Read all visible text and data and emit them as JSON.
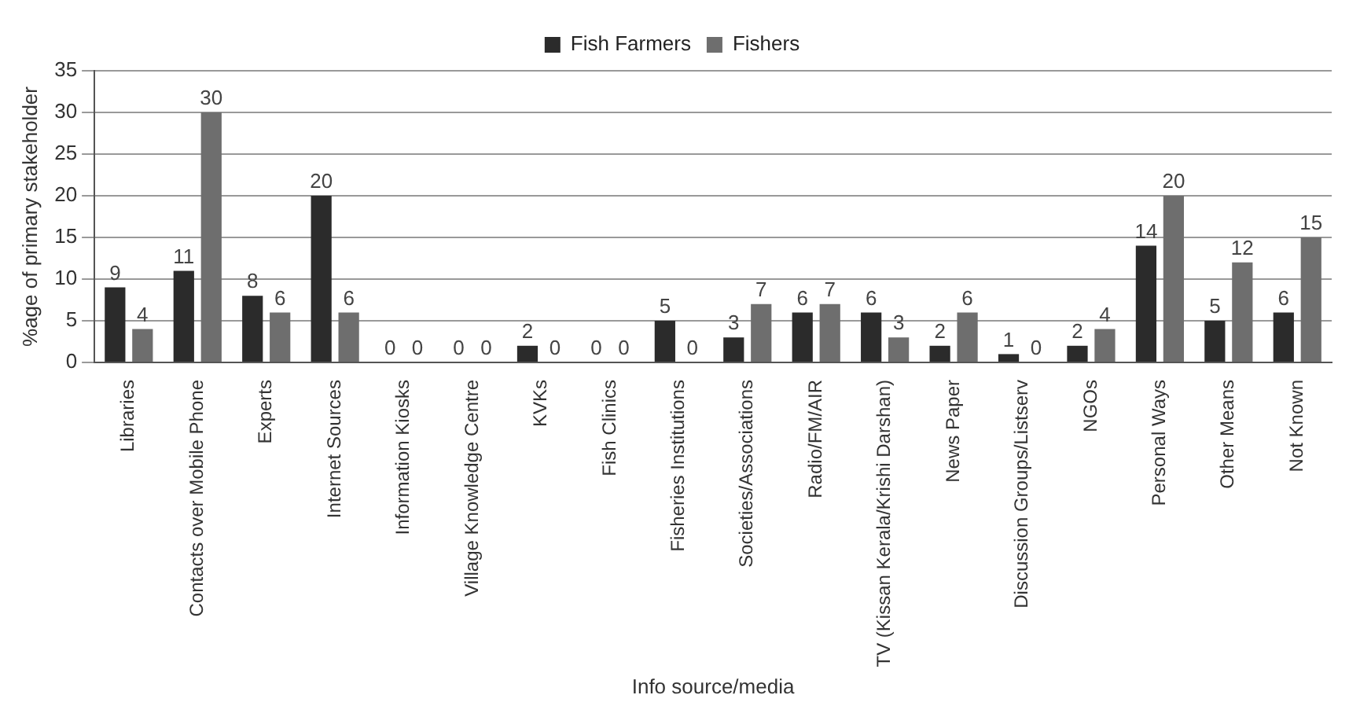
{
  "chart_data": {
    "type": "bar",
    "xlabel": "Info source/media",
    "ylabel": "%age of primary stakeholder",
    "categories": [
      "Libraries",
      "Contacts over Mobile Phone",
      "Experts",
      "Internet Sources",
      "Information Kiosks",
      "Village Knowledge Centre",
      "KVKs",
      "Fish Clinics",
      "Fisheries Institutions",
      "Societies/Associations",
      "Radio/FM/AIR",
      "TV (Kissan Kerala/Krishi Darshan)",
      "News Paper",
      "Discussion Groups/Listserv",
      "NGOs",
      "Personal Ways",
      "Other Means",
      "Not Known"
    ],
    "series": [
      {
        "name": "Fish Farmers",
        "color": "#2b2b2b",
        "values": [
          9,
          11,
          8,
          20,
          0,
          0,
          2,
          0,
          5,
          3,
          6,
          6,
          2,
          1,
          2,
          14,
          5,
          6
        ]
      },
      {
        "name": "Fishers",
        "color": "#6e6e6e",
        "values": [
          4,
          30,
          6,
          6,
          0,
          0,
          0,
          0,
          0,
          7,
          7,
          3,
          6,
          0,
          4,
          20,
          12,
          15
        ]
      }
    ],
    "ylim": [
      0,
      35
    ],
    "yticks": [
      0,
      5,
      10,
      15,
      20,
      25,
      30,
      35
    ],
    "grid": "y",
    "legend": "top",
    "data_labels": true
  }
}
